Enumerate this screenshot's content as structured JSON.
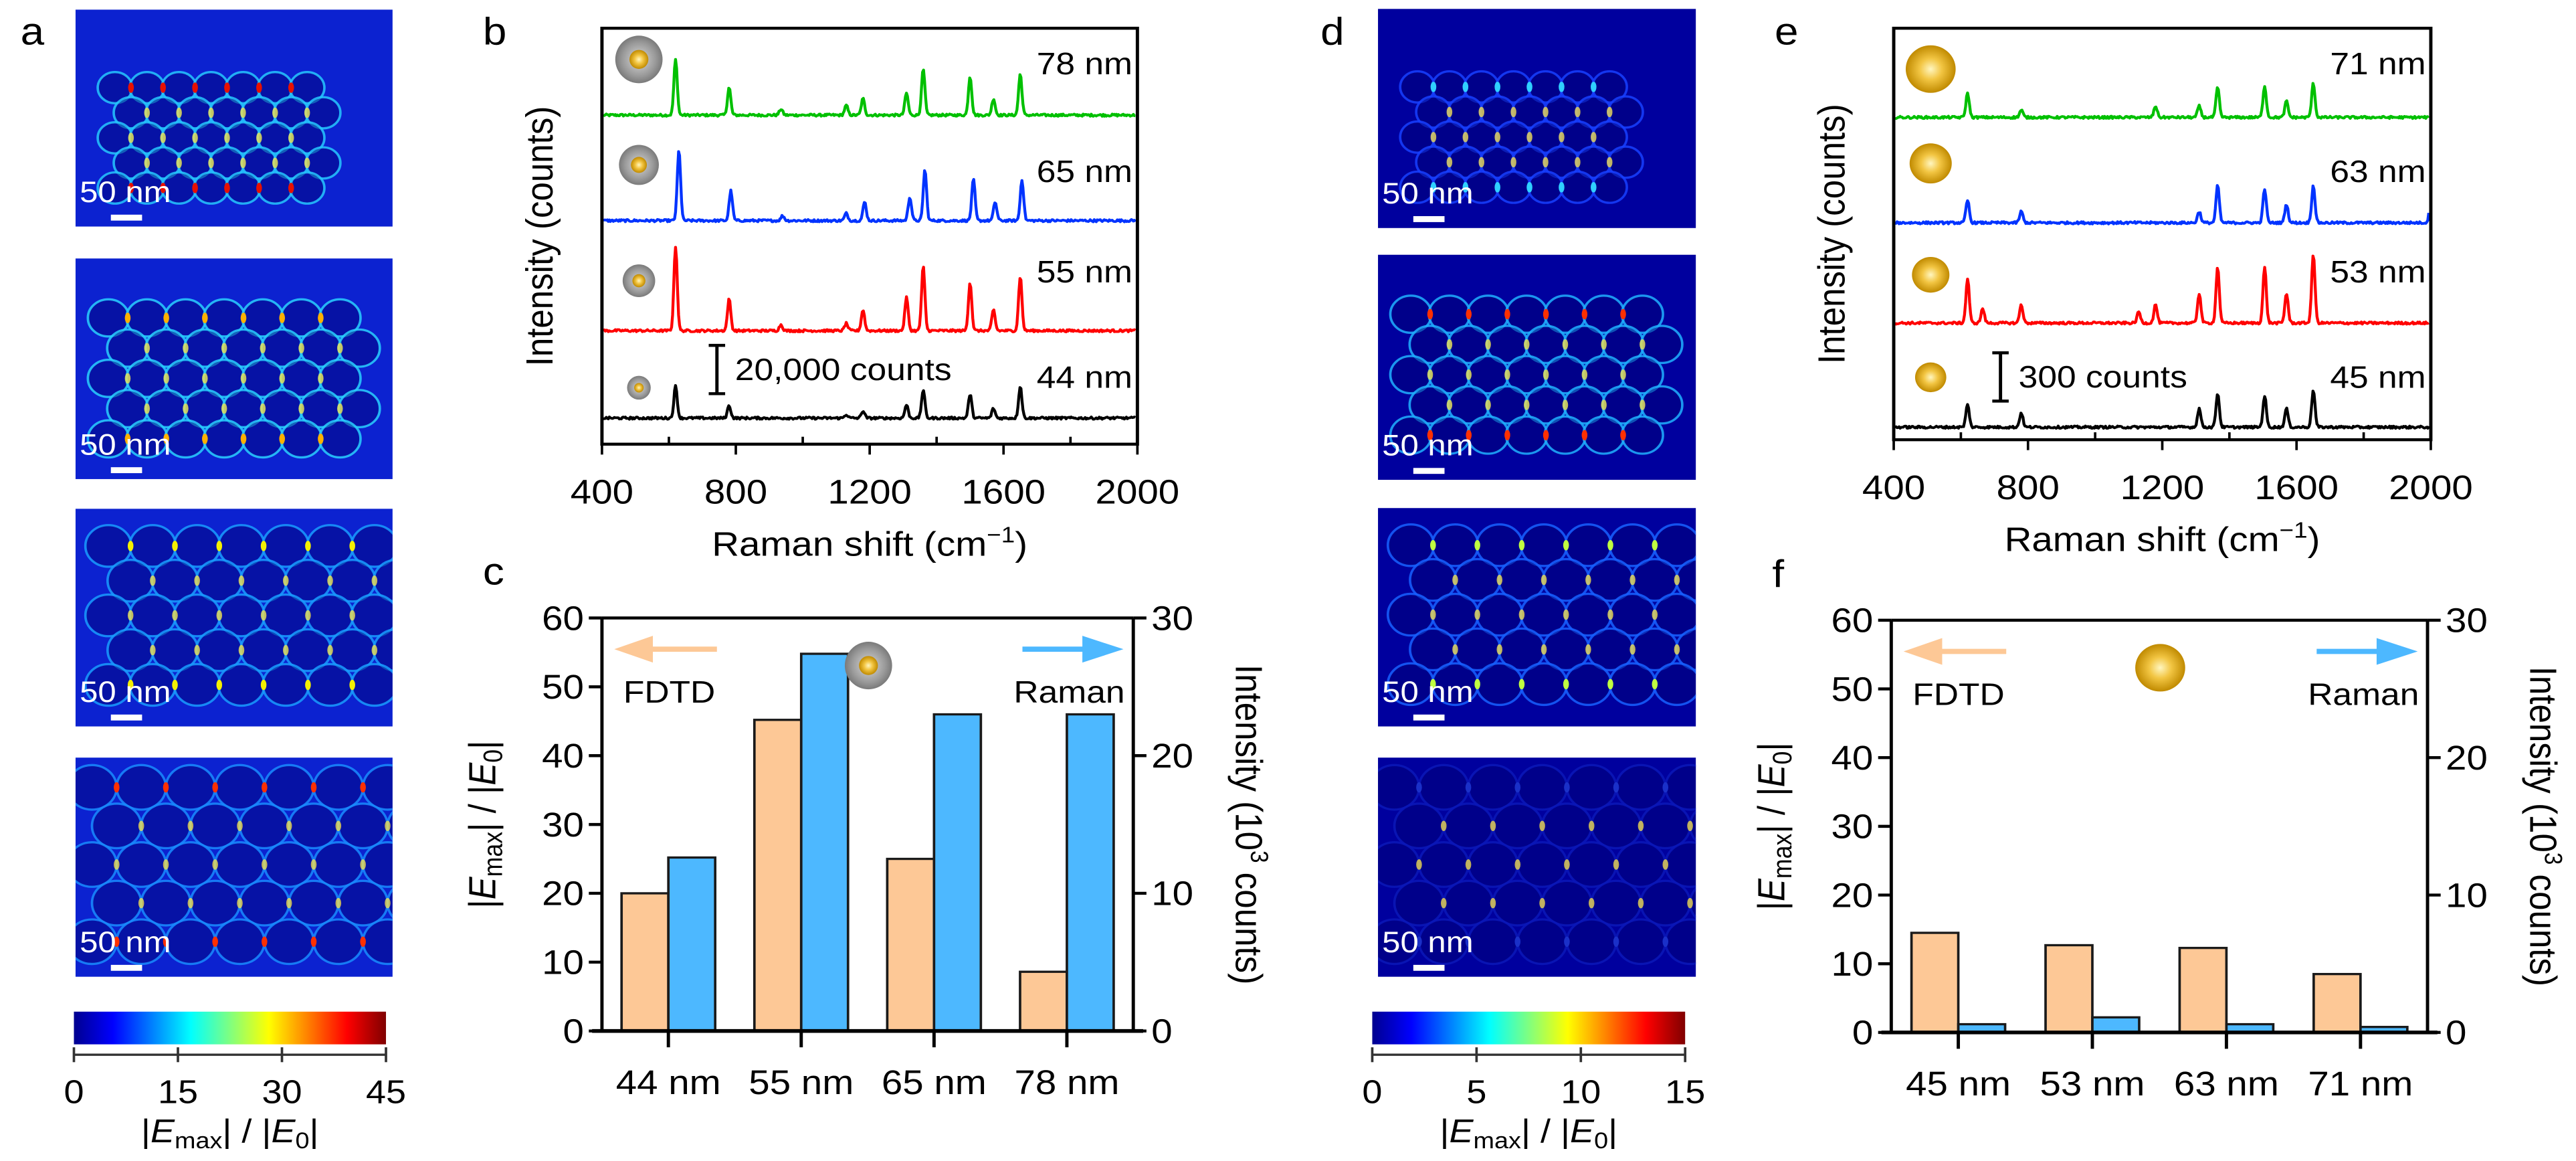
{
  "panel_labels": {
    "a": "a",
    "b": "b",
    "c": "c",
    "d": "d",
    "e": "e",
    "f": "f"
  },
  "field_label": {
    "pre": "|",
    "var": "E",
    "sub": "max",
    "mid": "| / |",
    "var2": "E",
    "sub2": "0",
    "post": "|"
  },
  "heatmaps": [
    {
      "panel": "a",
      "scale_bar": "50 nm",
      "background_color": "#0c22d0",
      "frames": [
        {
          "hotspot_color": "#e81000",
          "rim_color": "#27c8ff"
        },
        {
          "hotspot_color": "#ffb000",
          "rim_color": "#2ad0ff"
        },
        {
          "hotspot_color": "#f4f000",
          "rim_color": "#1a9cff"
        },
        {
          "hotspot_color": "#ff3000",
          "rim_color": "#1a8cff"
        }
      ],
      "colorbar": {
        "range": [
          0,
          45
        ],
        "ticks": [
          "0",
          "15",
          "30",
          "45"
        ]
      }
    },
    {
      "panel": "d",
      "scale_bar": "50 nm",
      "background_color": "#00009e",
      "frames": [
        {
          "hotspot_color": "#30d0ff",
          "rim_color": "#1840ff"
        },
        {
          "hotspot_color": "#ff3000",
          "rim_color": "#20b0ff"
        },
        {
          "hotspot_color": "#c0ff40",
          "rim_color": "#1860ff"
        },
        {
          "hotspot_color": "#1a30c8",
          "rim_color": "#0a18b8"
        }
      ],
      "colorbar": {
        "range": [
          0,
          15
        ],
        "ticks": [
          "0",
          "5",
          "10",
          "15"
        ]
      }
    }
  ],
  "chart_data": [
    {
      "panel": "b",
      "type": "line",
      "xlabel": {
        "text": "Raman shift (cm",
        "sup": "−1",
        "end": ")"
      },
      "ylabel": "Intensity (counts)",
      "xlim": [
        400,
        2000
      ],
      "xticks": [
        "400",
        "800",
        "1200",
        "1600",
        "2000"
      ],
      "ylim": [
        0,
        172300
      ],
      "scale_bar": {
        "label": "20,000 counts",
        "value": 20000
      },
      "series": [
        {
          "name": "78 nm",
          "color": "#00c000",
          "particle": "core-shell",
          "offset": 136300,
          "peaks": [
            [
              620,
              23000
            ],
            [
              780,
              11400
            ],
            [
              935,
              2500
            ],
            [
              1130,
              4000
            ],
            [
              1180,
              6800
            ],
            [
              1310,
              9200
            ],
            [
              1360,
              19000
            ],
            [
              1500,
              16000
            ],
            [
              1570,
              6800
            ],
            [
              1650,
              17000
            ]
          ]
        },
        {
          "name": "65 nm",
          "color": "#0033ff",
          "particle": "core-shell",
          "offset": 92600,
          "peaks": [
            [
              630,
              29000
            ],
            [
              785,
              12300
            ],
            [
              940,
              2000
            ],
            [
              1130,
              3000
            ],
            [
              1185,
              7700
            ],
            [
              1320,
              9800
            ],
            [
              1365,
              21000
            ],
            [
              1510,
              17000
            ],
            [
              1575,
              7700
            ],
            [
              1655,
              17000
            ]
          ]
        },
        {
          "name": "55 nm",
          "color": "#ff0000",
          "particle": "core-shell",
          "offset": 47000,
          "peaks": [
            [
              620,
              35000
            ],
            [
              780,
              13000
            ],
            [
              935,
              2500
            ],
            [
              1130,
              3000
            ],
            [
              1180,
              8600
            ],
            [
              1310,
              13800
            ],
            [
              1360,
              26500
            ],
            [
              1500,
              20000
            ],
            [
              1570,
              8600
            ],
            [
              1650,
              22500
            ]
          ]
        },
        {
          "name": "44 nm",
          "color": "#000000",
          "particle": "core-shell",
          "offset": 10800,
          "peaks": [
            [
              620,
              13200
            ],
            [
              780,
              5200
            ],
            [
              1130,
              1500
            ],
            [
              1180,
              3000
            ],
            [
              1310,
              5500
            ],
            [
              1360,
              11700
            ],
            [
              1500,
              9800
            ],
            [
              1570,
              4000
            ],
            [
              1650,
              13200
            ]
          ]
        }
      ]
    },
    {
      "panel": "c",
      "type": "bar",
      "categories": [
        "44 nm",
        "55 nm",
        "65 nm",
        "78 nm"
      ],
      "particle": "core-shell",
      "ylim_left": [
        0,
        60
      ],
      "ylim_right": [
        0,
        30
      ],
      "yticks_left": [
        "0",
        "10",
        "20",
        "30",
        "40",
        "50",
        "60"
      ],
      "yticks_right": [
        "0",
        "10",
        "20",
        "30"
      ],
      "ylabel_right": {
        "text": "Intensity (10",
        "sup": "3",
        "end": " counts)"
      },
      "series": [
        {
          "name": "FDTD",
          "axis": "left",
          "color": "#fdc896",
          "values": [
            20.0,
            45.2,
            25.0,
            8.6
          ]
        },
        {
          "name": "Raman",
          "axis": "right",
          "color": "#4db8ff",
          "values": [
            12.6,
            27.4,
            23.0,
            23.0
          ]
        }
      ]
    },
    {
      "panel": "e",
      "type": "line",
      "xlabel": {
        "text": "Raman shift (cm",
        "sup": "−1",
        "end": ")"
      },
      "ylabel": "Intensity (counts)",
      "xlim": [
        400,
        2000
      ],
      "xticks": [
        "400",
        "800",
        "1200",
        "1600",
        "2000"
      ],
      "ylim": [
        0,
        2557
      ],
      "scale_bar": {
        "label": "300 counts",
        "value": 300
      },
      "series": [
        {
          "name": "71 nm",
          "color": "#00c000",
          "particle": "gold",
          "offset": 2003,
          "peaks": [
            [
              620,
              150
            ],
            [
              780,
              45
            ],
            [
              1180,
              70
            ],
            [
              1310,
              70
            ],
            [
              1365,
              185
            ],
            [
              1505,
              195
            ],
            [
              1570,
              100
            ],
            [
              1650,
              210
            ]
          ]
        },
        {
          "name": "63 nm",
          "color": "#0033ff",
          "particle": "gold",
          "offset": 1348,
          "peaks": [
            [
              620,
              140
            ],
            [
              780,
              70
            ],
            [
              1310,
              70
            ],
            [
              1365,
              230
            ],
            [
              1505,
              210
            ],
            [
              1570,
              115
            ],
            [
              1650,
              230
            ],
            [
              2000,
              115
            ]
          ]
        },
        {
          "name": "53 nm",
          "color": "#ff0000",
          "particle": "gold",
          "offset": 725,
          "peaks": [
            [
              620,
              275
            ],
            [
              665,
              90
            ],
            [
              780,
              115
            ],
            [
              1130,
              70
            ],
            [
              1180,
              115
            ],
            [
              1310,
              185
            ],
            [
              1365,
              345
            ],
            [
              1505,
              345
            ],
            [
              1570,
              185
            ],
            [
              1650,
              425
            ]
          ]
        },
        {
          "name": "45 nm",
          "color": "#000000",
          "particle": "gold",
          "offset": 78,
          "peaks": [
            [
              620,
              140
            ],
            [
              780,
              90
            ],
            [
              1310,
              115
            ],
            [
              1365,
              210
            ],
            [
              1505,
              195
            ],
            [
              1570,
              115
            ],
            [
              1650,
              230
            ]
          ]
        }
      ]
    },
    {
      "panel": "f",
      "type": "bar",
      "categories": [
        "45 nm",
        "53 nm",
        "63 nm",
        "71 nm"
      ],
      "particle": "gold",
      "ylim_left": [
        0,
        60
      ],
      "ylim_right": [
        0,
        30
      ],
      "yticks_left": [
        "0",
        "10",
        "20",
        "30",
        "40",
        "50",
        "60"
      ],
      "yticks_right": [
        "0",
        "10",
        "20",
        "30"
      ],
      "ylabel_right": {
        "text": "Intensity (10",
        "sup": "3",
        "end": " counts)"
      },
      "series": [
        {
          "name": "FDTD",
          "axis": "left",
          "color": "#fdc896",
          "values": [
            14.5,
            12.7,
            12.3,
            8.5
          ]
        },
        {
          "name": "Raman",
          "axis": "right",
          "color": "#4db8ff",
          "values": [
            0.6,
            1.1,
            0.6,
            0.4
          ]
        }
      ]
    }
  ]
}
